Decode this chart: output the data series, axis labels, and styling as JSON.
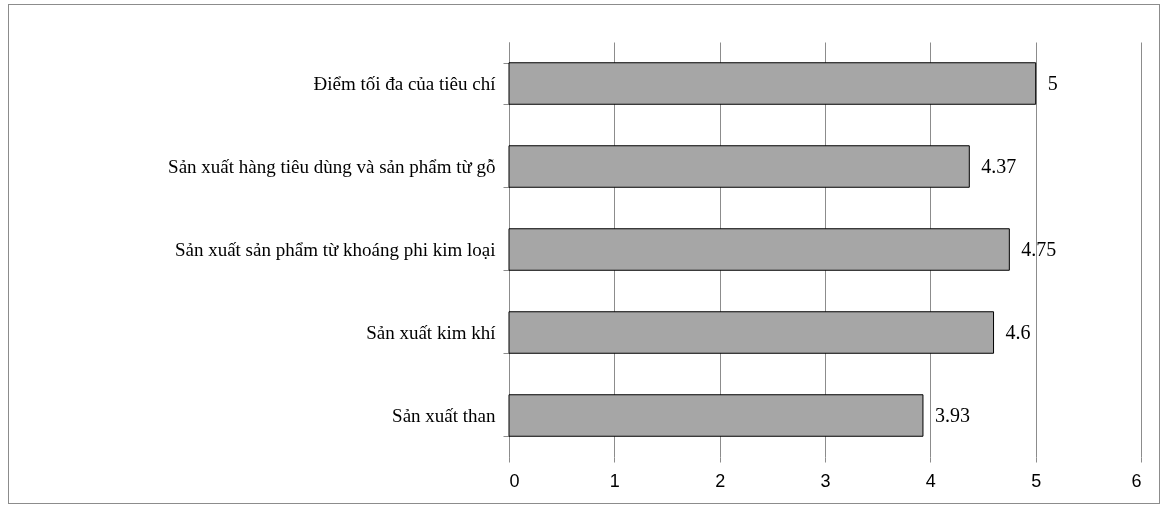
{
  "chart_data": {
    "type": "bar",
    "orientation": "horizontal",
    "categories": [
      "Điểm tối đa của tiêu chí",
      "Sản xuất hàng tiêu dùng và sản phẩm từ gỗ",
      "Sản xuất sản phẩm từ khoáng phi kim loại",
      "Sản xuất kim khí",
      "Sản xuất than"
    ],
    "values": [
      5,
      4.37,
      4.75,
      4.6,
      3.93
    ],
    "color": "#a6a6a6",
    "xlim": [
      0,
      6
    ],
    "xticks": [
      0,
      1,
      2,
      3,
      4,
      5,
      6
    ],
    "grid": "x",
    "data_labels": true
  }
}
